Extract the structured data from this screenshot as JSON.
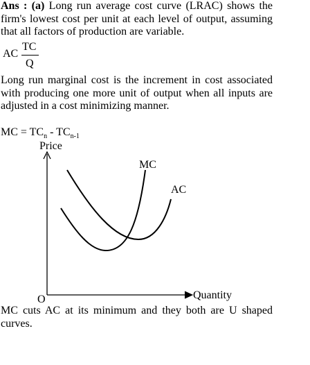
{
  "answer": {
    "label": "Ans : (a)",
    "text": "Long run average cost curve (LRAC) shows the firm's lowest cost per unit at each level of output, assuming that all factors of production are variable."
  },
  "formula_ac": {
    "lhs": "AC",
    "numerator": "TC",
    "denominator": "Q"
  },
  "paragraph": "Long run marginal cost is the increment in cost associated with producing one more unit of output when all inputs are adjusted in a cost minimizing manner.",
  "formula_mc": {
    "lhs": "MC = TC",
    "sub1": "n",
    "mid": " - TC",
    "sub2": "n-1"
  },
  "diagram": {
    "y_axis_label": "Price",
    "x_axis_label": "Quantity",
    "origin": "O",
    "curves": [
      "MC",
      "AC"
    ]
  },
  "conclusion": "MC cuts AC at its minimum and they both are U shaped curves."
}
